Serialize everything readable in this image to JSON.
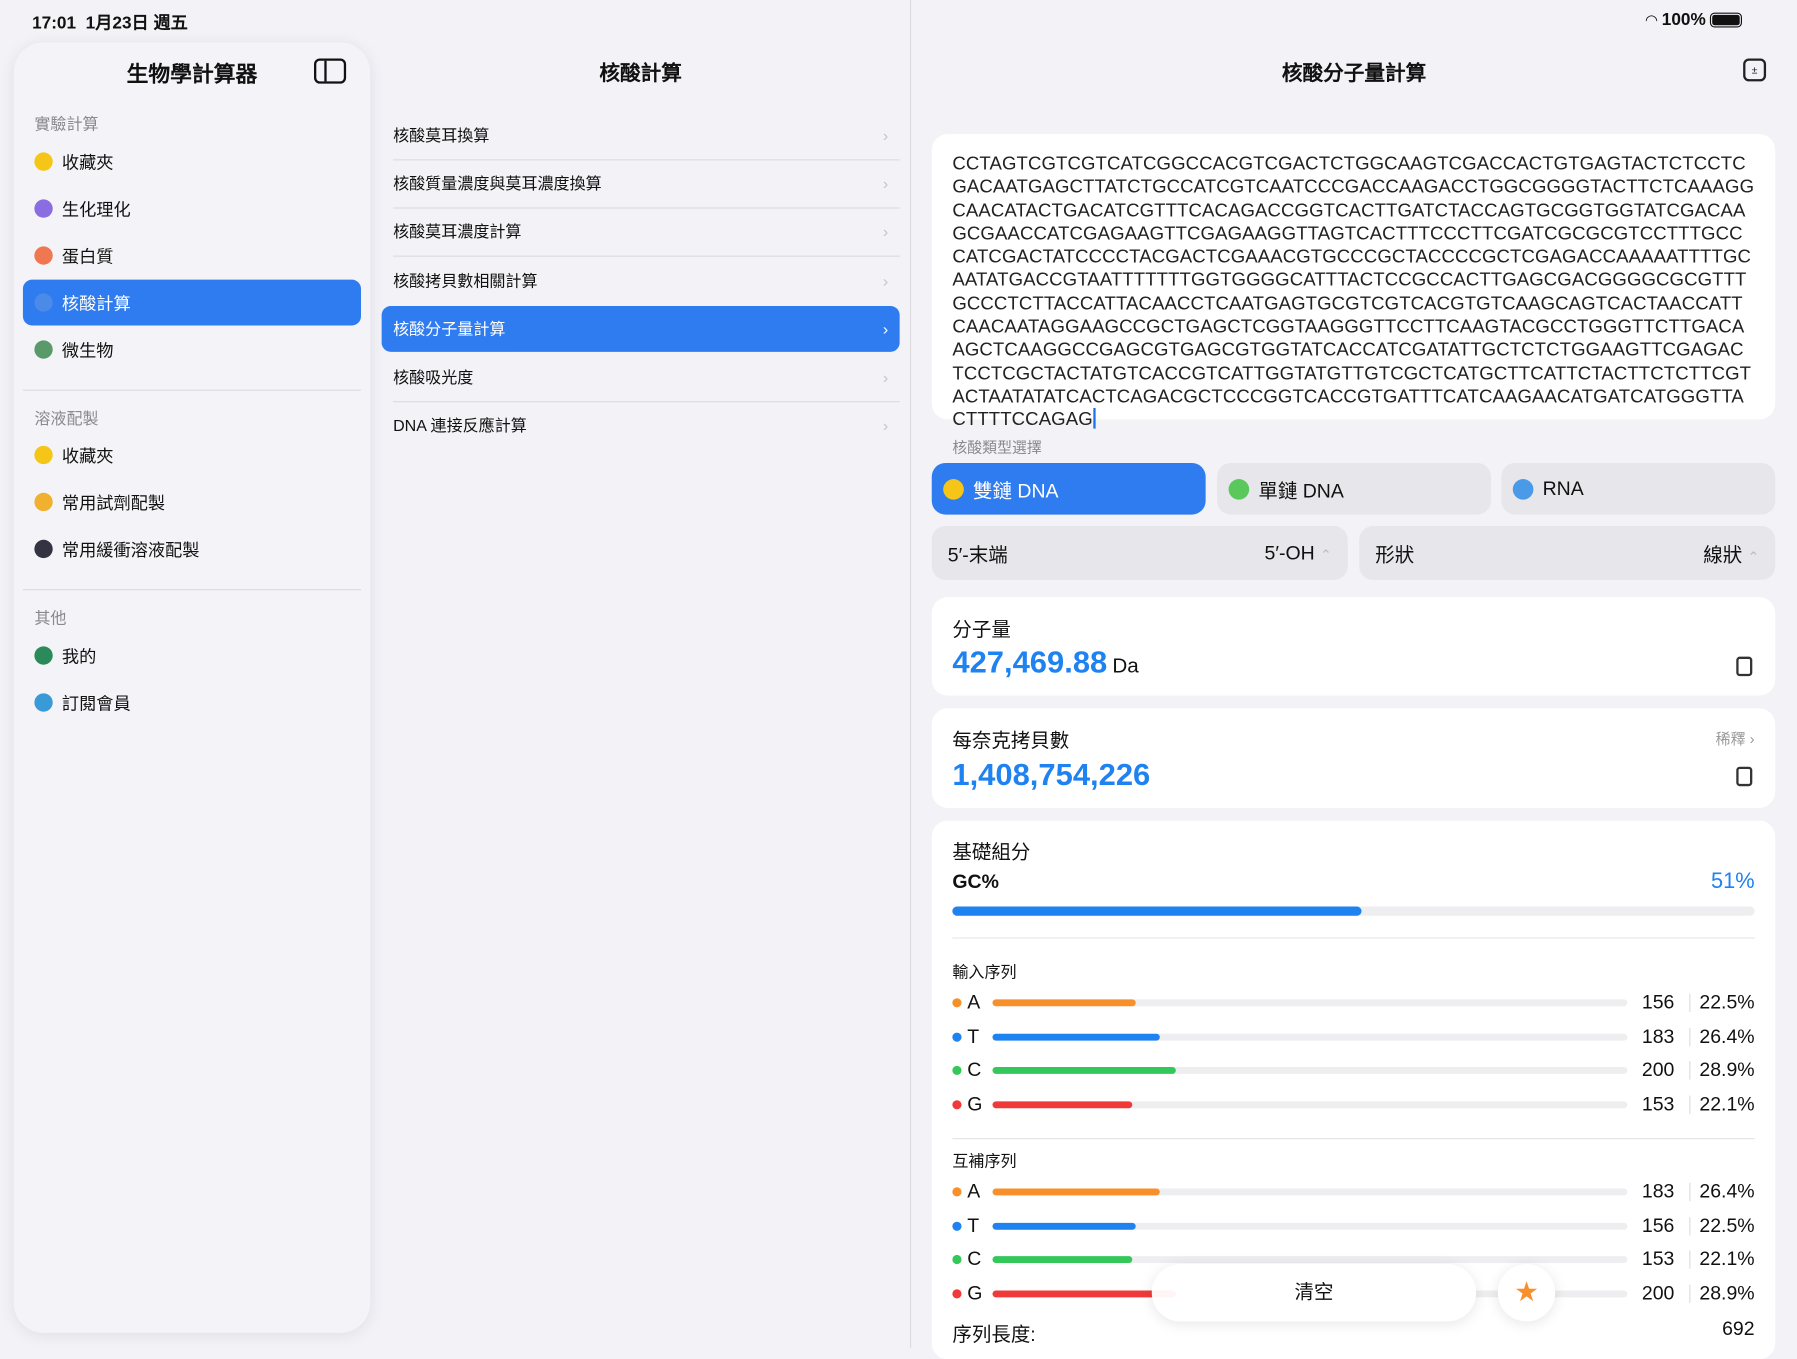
{
  "status": {
    "time": "17:01",
    "date": "1月23日 週五",
    "battery": "100%"
  },
  "sidebar": {
    "title": "生物學計算器",
    "sections": [
      {
        "header": "實驗計算",
        "items": [
          {
            "label": "收藏夾",
            "color": "#f5c518"
          },
          {
            "label": "生化理化",
            "color": "#8a6de0"
          },
          {
            "label": "蛋白質",
            "color": "#f07850"
          },
          {
            "label": "核酸計算",
            "color": "#4a8ae8",
            "selected": true
          },
          {
            "label": "微生物",
            "color": "#5a9a6a"
          }
        ]
      },
      {
        "header": "溶液配製",
        "items": [
          {
            "label": "收藏夾",
            "color": "#f5c518"
          },
          {
            "label": "常用試劑配製",
            "color": "#f0b030"
          },
          {
            "label": "常用緩衝溶液配製",
            "color": "#334"
          }
        ]
      },
      {
        "header": "其他",
        "items": [
          {
            "label": "我的",
            "color": "#2a8a5a"
          },
          {
            "label": "訂閱會員",
            "color": "#3a9ad8"
          }
        ]
      }
    ]
  },
  "middle": {
    "title": "核酸計算",
    "items": [
      "核酸莫耳換算",
      "核酸質量濃度與莫耳濃度換算",
      "核酸莫耳濃度計算",
      "核酸拷貝數相關計算",
      "核酸分子量計算",
      "核酸吸光度",
      "DNA 連接反應計算"
    ],
    "selected_index": 4
  },
  "detail": {
    "title": "核酸分子量計算",
    "sequence": "CCTAGTCGTCGTCATCGGCCACGTCGACTCTGGCAAGTCGACCACTGTGAGTACTCTCCTCGACAATGAGCTTATCTGCCATCGTCAATCCCGACCAAGACCTGGCGGGGTACTTCTCAAAGGCAACATACTGACATCGTTTCACAGACCGGTCACTTGATCTACCAGTGCGGTGGTATCGACAAGCGAACCATCGAGAAGTTCGAGAAGGTTAGTCACTTTCCCTTCGATCGCGCGTCCTTTGCCCATCGACTATCCCCTACGACTCGAAACGTGCCCGCTACCCCGCTCGAGACCAAAAATTTTGCAATATGACCGTAATTTTTTTGGTGGGGCATTTACTCCGCCACTTGAGCGACGGGGCGCGTTTGCCCTCTTACCATTACAACCTCAATGAGTGCGTCGTCACGTGTCAAGCAGTCACTAACCATTCAACAATAGGAAGCCGCTGAGCTCGGTAAGGGTTCCTTCAAGTACGCCTGGGTTCTTGACAAGCTCAAGGCCGAGCGTGAGCGTGGTATCACCATCGATATTGCTCTCTGGAAGTTCGAGACTCCTCGCTACTATGTCACCGTCATTGGTATGTTGTCGCTCATGCTTCATTCTACTTCTCTTCGTACTAATATATCACTCAGACGCTCCCGGTCACCGTGATTTCATCAAGAACATGATCATGGGTTACTTTTCCAGAG",
    "type_label": "核酸類型選擇",
    "types": [
      "雙鏈 DNA",
      "單鏈 DNA",
      "RNA"
    ],
    "selected_type": 0,
    "end_label": "5′-末端",
    "end_value": "5′-OH",
    "shape_label": "形狀",
    "shape_value": "線狀",
    "mw_label": "分子量",
    "mw_value": "427,469.88",
    "mw_unit": "Da",
    "copies_label": "每奈克拷貝數",
    "copies_value": "1,408,754,226",
    "dilute_label": "稀釋",
    "comp_label": "基礎組分",
    "gc_label": "GC%",
    "gc_value": "51%",
    "gc_fraction": 0.51,
    "input_label": "輸入序列",
    "input": [
      {
        "base": "A",
        "count": "156",
        "pct": "22.5%",
        "color": "#f7902a"
      },
      {
        "base": "T",
        "count": "183",
        "pct": "26.4%",
        "color": "#1e82f0"
      },
      {
        "base": "C",
        "count": "200",
        "pct": "28.9%",
        "color": "#34c759"
      },
      {
        "base": "G",
        "count": "153",
        "pct": "22.1%",
        "color": "#f03a3a"
      }
    ],
    "comp_seq_label": "互補序列",
    "complement": [
      {
        "base": "A",
        "count": "183",
        "pct": "26.4%",
        "color": "#f7902a"
      },
      {
        "base": "T",
        "count": "156",
        "pct": "22.5%",
        "color": "#1e82f0"
      },
      {
        "base": "C",
        "count": "153",
        "pct": "22.1%",
        "color": "#34c759"
      },
      {
        "base": "G",
        "count": "200",
        "pct": "28.9%",
        "color": "#f03a3a"
      }
    ],
    "length_label": "序列長度:",
    "length_value": "692",
    "clear_label": "清空"
  }
}
